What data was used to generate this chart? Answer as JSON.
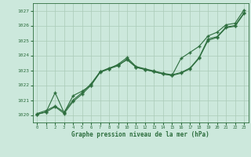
{
  "xlabel": "Graphe pression niveau de la mer (hPa)",
  "bg_color": "#cce8dc",
  "grid_color": "#aacbb8",
  "line_color": "#2d6e3e",
  "ylim": [
    1019.5,
    1027.5
  ],
  "xlim": [
    -0.5,
    23.5
  ],
  "xticks": [
    0,
    1,
    2,
    3,
    4,
    5,
    6,
    7,
    8,
    9,
    10,
    11,
    12,
    13,
    14,
    15,
    16,
    17,
    18,
    19,
    20,
    21,
    22,
    23
  ],
  "yticks": [
    1020,
    1021,
    1022,
    1023,
    1024,
    1025,
    1026,
    1027
  ],
  "series1_x": [
    0,
    1,
    2,
    3,
    4,
    5,
    6,
    7,
    8,
    9,
    10,
    11,
    12,
    13,
    14,
    15,
    16,
    17,
    18,
    19,
    20,
    21,
    22,
    23
  ],
  "series1_y": [
    1020.1,
    1020.3,
    1020.6,
    1020.2,
    1021.0,
    1021.5,
    1022.1,
    1022.9,
    1023.1,
    1023.4,
    1023.85,
    1023.25,
    1023.1,
    1022.95,
    1022.8,
    1022.7,
    1022.85,
    1023.15,
    1023.85,
    1025.1,
    1025.25,
    1025.9,
    1026.0,
    1026.85
  ],
  "series2_x": [
    0,
    1,
    2,
    3,
    4,
    5,
    6,
    7,
    8,
    9,
    10,
    11,
    12,
    13,
    14,
    15,
    16,
    17,
    18,
    19,
    20,
    21,
    22,
    23
  ],
  "series2_y": [
    1020.05,
    1020.2,
    1021.5,
    1020.15,
    1021.3,
    1021.6,
    1022.0,
    1022.9,
    1023.15,
    1023.35,
    1023.7,
    1023.2,
    1023.05,
    1022.9,
    1022.75,
    1022.65,
    1023.8,
    1024.2,
    1024.6,
    1025.3,
    1025.55,
    1026.05,
    1026.15,
    1027.05
  ],
  "series3_x": [
    0,
    1,
    2,
    3,
    4,
    5,
    6,
    7,
    8,
    9,
    10,
    11,
    12,
    13,
    14,
    15,
    16,
    17,
    18,
    19,
    20,
    21,
    22,
    23
  ],
  "series3_y": [
    1020.05,
    1020.2,
    1020.55,
    1020.1,
    1020.9,
    1021.4,
    1022.0,
    1022.85,
    1023.1,
    1023.3,
    1023.75,
    1023.2,
    1023.05,
    1022.9,
    1022.75,
    1022.65,
    1022.8,
    1023.1,
    1023.8,
    1025.0,
    1025.2,
    1025.85,
    1025.95,
    1026.8
  ]
}
